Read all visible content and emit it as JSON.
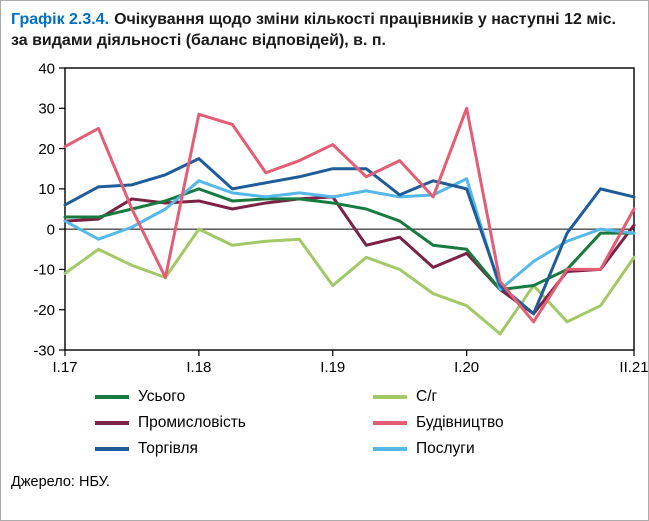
{
  "title": {
    "prefix": "Графік 2.3.4.",
    "text": "Очікування щодо зміни кількості працівників у наступні 12 міс. за видами діяльності (баланс відповідей), в. п."
  },
  "source": "Джерело: НБУ.",
  "colors": {
    "title_accent": "#0070C0",
    "axis": "#000000",
    "zero_line": "#4a4a4a"
  },
  "chart_data": {
    "type": "line",
    "title": "Очікування щодо зміни кількості працівників у наступні 12 міс. за видами діяльності (баланс відповідей), в. п.",
    "xlabel": "",
    "ylabel": "",
    "ylim": [
      -30,
      40
    ],
    "grid": false,
    "legend_position": "bottom",
    "x_count": 18,
    "x_tick_positions": [
      0,
      4,
      8,
      12,
      17
    ],
    "x_tick_labels": [
      "I.17",
      "I.18",
      "I.19",
      "I.20",
      "II.21"
    ],
    "y_ticks": [
      40,
      30,
      20,
      10,
      0,
      -10,
      -20,
      -30
    ],
    "series": [
      {
        "name": "Усього",
        "color": "#177B40",
        "values": [
          3,
          3,
          5,
          7,
          10,
          7,
          7.5,
          7.5,
          6.5,
          5,
          2,
          -4,
          -5,
          -15,
          -14,
          -10,
          -1,
          -1
        ]
      },
      {
        "name": "С/г",
        "color": "#A2C966",
        "values": [
          -11,
          -5,
          -9,
          -12,
          0,
          -4,
          -3,
          -2.5,
          -14,
          -7,
          -10,
          -16,
          -19,
          -26,
          -14,
          -23,
          -19,
          -7
        ]
      },
      {
        "name": "Промисловість",
        "color": "#7B2346",
        "values": [
          2,
          2.5,
          7.5,
          6.5,
          7,
          5,
          6.5,
          7.5,
          8,
          -4,
          -2,
          -9.5,
          -6,
          -15,
          -21,
          -10.5,
          -10,
          1
        ]
      },
      {
        "name": "Будівництво",
        "color": "#E35D74",
        "values": [
          20.5,
          25,
          5,
          -12,
          28.5,
          26,
          14,
          17,
          21,
          13,
          17,
          8,
          30,
          -13,
          -23,
          -10,
          -10,
          5
        ]
      },
      {
        "name": "Торгівля",
        "color": "#1F5C99",
        "values": [
          6,
          10.5,
          11,
          13.5,
          17.5,
          10,
          11.5,
          13,
          15,
          15,
          8.5,
          12,
          10,
          -14,
          -21,
          -1,
          10,
          8
        ]
      },
      {
        "name": "Послуги",
        "color": "#55B8E8",
        "values": [
          2,
          -2.5,
          0.5,
          5,
          12,
          9,
          8,
          9,
          8,
          9.5,
          8,
          8.5,
          12.5,
          -15,
          -8,
          -3,
          0,
          -1
        ]
      }
    ]
  }
}
